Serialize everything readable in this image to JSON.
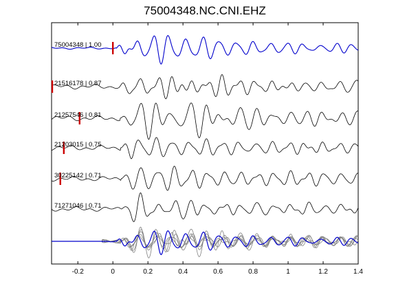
{
  "chart_data": {
    "type": "line",
    "title": "75004348.NC.CNI.EHZ",
    "xlabel": "",
    "ylabel": "",
    "xlim": [
      -0.35,
      1.4
    ],
    "xticks": [
      -0.2,
      0,
      0.2,
      0.4,
      0.6,
      0.8,
      1,
      1.2,
      1.4
    ],
    "xtick_labels": [
      "-0.2",
      "0",
      "0.2",
      "0.4",
      "0.6",
      "0.8",
      "1",
      "1.2",
      "1.4"
    ],
    "grid": false,
    "pick_color": "#cc0000",
    "reference_color": "#0000cc",
    "trace_color": "#000000",
    "overlay_color": "#808080",
    "series": [
      {
        "label": "75004348 | 1.00",
        "pick": 0.0,
        "reference": true
      },
      {
        "label": "21516178 | 0.87",
        "pick": -0.35,
        "reference": false
      },
      {
        "label": "21257546 | 0.81",
        "pick": -0.19,
        "reference": false
      },
      {
        "label": "21203015 | 0.75",
        "pick": -0.28,
        "reference": false
      },
      {
        "label": "30225142 | 0.71",
        "pick": -0.3,
        "reference": false
      },
      {
        "label": "71271046 | 0.71",
        "pick": null,
        "reference": false
      }
    ]
  }
}
